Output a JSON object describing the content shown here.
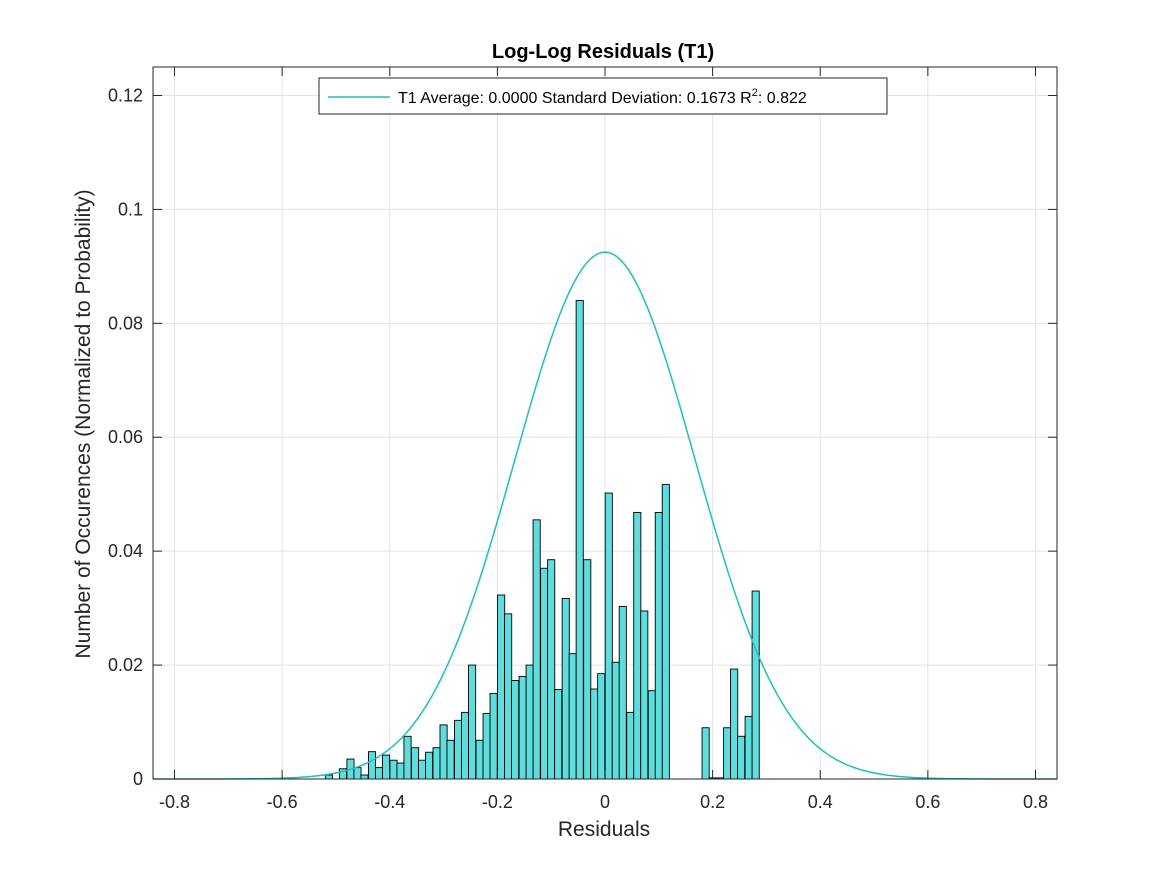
{
  "chart_data": {
    "type": "bar",
    "title": "Log-Log Residuals (T1)",
    "xlabel": "Residuals",
    "ylabel": "Number of Occurences (Normalized to Probability)",
    "xlim": [
      -0.84,
      0.84
    ],
    "ylim": [
      0,
      0.125
    ],
    "xticks": [
      -0.8,
      -0.6,
      -0.4,
      -0.2,
      0,
      0.2,
      0.4,
      0.6,
      0.8
    ],
    "xtick_labels": [
      "-0.8",
      "-0.6",
      "-0.4",
      "-0.2",
      "0",
      "0.2",
      "0.4",
      "0.6",
      "0.8"
    ],
    "yticks": [
      0,
      0.02,
      0.04,
      0.06,
      0.08,
      0.1,
      0.12
    ],
    "ytick_labels": [
      "0",
      "0.02",
      "0.04",
      "0.06",
      "0.08",
      "0.1",
      "0.12"
    ],
    "grid": true,
    "legend_position": "top-center",
    "colors": {
      "bar_fill": "#5FDCDC",
      "bar_edge": "#000000",
      "curve": "#1FBFBF",
      "grid": "#e3e3e3"
    },
    "histogram": {
      "bin_width": 0.0133,
      "bins": [
        {
          "x": -0.513,
          "y": 0.0007
        },
        {
          "x": -0.487,
          "y": 0.0018
        },
        {
          "x": -0.473,
          "y": 0.0035
        },
        {
          "x": -0.46,
          "y": 0.002
        },
        {
          "x": -0.447,
          "y": 0.0007
        },
        {
          "x": -0.433,
          "y": 0.0048
        },
        {
          "x": -0.42,
          "y": 0.002
        },
        {
          "x": -0.407,
          "y": 0.0042
        },
        {
          "x": -0.393,
          "y": 0.0033
        },
        {
          "x": -0.38,
          "y": 0.0028
        },
        {
          "x": -0.367,
          "y": 0.0075
        },
        {
          "x": -0.353,
          "y": 0.0055
        },
        {
          "x": -0.34,
          "y": 0.0033
        },
        {
          "x": -0.327,
          "y": 0.0047
        },
        {
          "x": -0.313,
          "y": 0.0055
        },
        {
          "x": -0.3,
          "y": 0.0095
        },
        {
          "x": -0.287,
          "y": 0.0068
        },
        {
          "x": -0.273,
          "y": 0.0103
        },
        {
          "x": -0.26,
          "y": 0.0117
        },
        {
          "x": -0.247,
          "y": 0.02
        },
        {
          "x": -0.233,
          "y": 0.0068
        },
        {
          "x": -0.22,
          "y": 0.0115
        },
        {
          "x": -0.207,
          "y": 0.015
        },
        {
          "x": -0.193,
          "y": 0.0323
        },
        {
          "x": -0.18,
          "y": 0.029
        },
        {
          "x": -0.167,
          "y": 0.0173
        },
        {
          "x": -0.153,
          "y": 0.018
        },
        {
          "x": -0.14,
          "y": 0.02
        },
        {
          "x": -0.127,
          "y": 0.0455
        },
        {
          "x": -0.113,
          "y": 0.037
        },
        {
          "x": -0.1,
          "y": 0.0385
        },
        {
          "x": -0.087,
          "y": 0.0157
        },
        {
          "x": -0.073,
          "y": 0.0317
        },
        {
          "x": -0.06,
          "y": 0.022
        },
        {
          "x": -0.047,
          "y": 0.084
        },
        {
          "x": -0.033,
          "y": 0.0385
        },
        {
          "x": -0.02,
          "y": 0.0158
        },
        {
          "x": -0.007,
          "y": 0.0185
        },
        {
          "x": 0.007,
          "y": 0.0502
        },
        {
          "x": 0.02,
          "y": 0.0205
        },
        {
          "x": 0.033,
          "y": 0.0303
        },
        {
          "x": 0.047,
          "y": 0.0117
        },
        {
          "x": 0.06,
          "y": 0.0468
        },
        {
          "x": 0.073,
          "y": 0.0295
        },
        {
          "x": 0.087,
          "y": 0.0155
        },
        {
          "x": 0.1,
          "y": 0.0468
        },
        {
          "x": 0.113,
          "y": 0.0517
        },
        {
          "x": 0.187,
          "y": 0.009
        },
        {
          "x": 0.2,
          "y": 0.0002
        },
        {
          "x": 0.213,
          "y": 0.0002
        },
        {
          "x": 0.227,
          "y": 0.009
        },
        {
          "x": 0.24,
          "y": 0.0193
        },
        {
          "x": 0.253,
          "y": 0.0075
        },
        {
          "x": 0.267,
          "y": 0.011
        },
        {
          "x": 0.28,
          "y": 0.033
        }
      ]
    },
    "series": [
      {
        "name": "T1 Average: 0.0000 Standard Deviation: 0.1673 R",
        "type": "line",
        "distribution": "normal",
        "mean": 0.0,
        "std": 0.1673,
        "peak": 0.0925,
        "x_range": [
          -0.84,
          0.84
        ]
      }
    ],
    "legend": {
      "text_main": "T1 Average: 0.0000 Standard Deviation: 0.1673 R",
      "superscript": "2",
      "text_tail": ": 0.822"
    }
  }
}
